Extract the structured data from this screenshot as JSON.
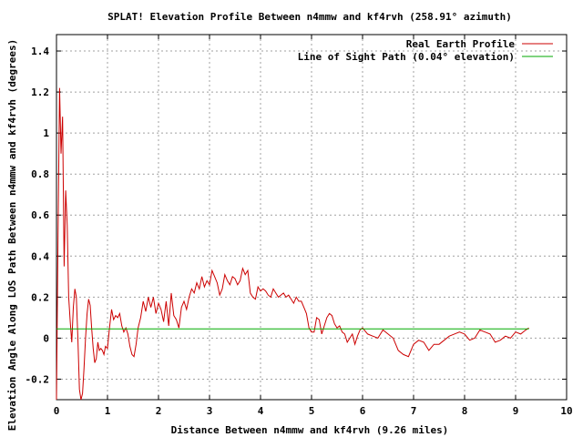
{
  "chart_data": {
    "type": "line",
    "title": "SPLAT! Elevation Profile Between n4mmw and kf4rvh (258.91° azimuth)",
    "xlabel": "Distance Between n4mmw and kf4rvh (9.26 miles)",
    "ylabel": "Elevation Angle Along LOS Path Between n4mmw and kf4rvh (degrees)",
    "xlim": [
      0,
      10
    ],
    "ylim": [
      -0.3,
      1.48
    ],
    "x_ticks": [
      0,
      1,
      2,
      3,
      4,
      5,
      6,
      7,
      8,
      9,
      10
    ],
    "y_ticks": [
      -0.2,
      0,
      0.2,
      0.4,
      0.6,
      0.8,
      1,
      1.2,
      1.4
    ],
    "x_tick_labels": [
      "0",
      "1",
      "2",
      "3",
      "4",
      "5",
      "6",
      "7",
      "8",
      "9",
      "10"
    ],
    "y_tick_labels": [
      "-0.2",
      "0",
      "0.2",
      "0.4",
      "0.6",
      "0.8",
      "1",
      "1.2",
      "1.4"
    ],
    "grid": true,
    "legend_position": "top-right",
    "series": [
      {
        "name": "Real Earth Profile",
        "color": "#cc0000",
        "x": [
          0.0,
          0.03,
          0.06,
          0.09,
          0.12,
          0.15,
          0.18,
          0.21,
          0.24,
          0.27,
          0.3,
          0.33,
          0.36,
          0.39,
          0.42,
          0.45,
          0.48,
          0.51,
          0.54,
          0.57,
          0.6,
          0.63,
          0.66,
          0.69,
          0.72,
          0.75,
          0.78,
          0.81,
          0.84,
          0.87,
          0.9,
          0.93,
          0.96,
          1.0,
          1.04,
          1.08,
          1.12,
          1.16,
          1.2,
          1.24,
          1.28,
          1.32,
          1.36,
          1.4,
          1.44,
          1.48,
          1.52,
          1.56,
          1.6,
          1.65,
          1.7,
          1.75,
          1.8,
          1.85,
          1.9,
          1.95,
          2.0,
          2.05,
          2.1,
          2.15,
          2.2,
          2.25,
          2.3,
          2.35,
          2.4,
          2.45,
          2.5,
          2.55,
          2.6,
          2.65,
          2.7,
          2.75,
          2.8,
          2.85,
          2.9,
          2.95,
          3.0,
          3.05,
          3.1,
          3.15,
          3.2,
          3.25,
          3.3,
          3.35,
          3.4,
          3.45,
          3.5,
          3.55,
          3.6,
          3.65,
          3.7,
          3.75,
          3.8,
          3.85,
          3.9,
          3.95,
          4.0,
          4.05,
          4.1,
          4.15,
          4.2,
          4.25,
          4.3,
          4.35,
          4.4,
          4.45,
          4.5,
          4.55,
          4.6,
          4.65,
          4.7,
          4.75,
          4.8,
          4.85,
          4.9,
          4.95,
          5.0,
          5.05,
          5.1,
          5.15,
          5.2,
          5.25,
          5.3,
          5.35,
          5.4,
          5.45,
          5.5,
          5.55,
          5.6,
          5.65,
          5.7,
          5.75,
          5.8,
          5.85,
          5.9,
          5.95,
          6.0,
          6.1,
          6.2,
          6.3,
          6.4,
          6.5,
          6.6,
          6.7,
          6.8,
          6.9,
          7.0,
          7.1,
          7.2,
          7.3,
          7.4,
          7.5,
          7.6,
          7.7,
          7.8,
          7.9,
          8.0,
          8.1,
          8.2,
          8.3,
          8.4,
          8.5,
          8.6,
          8.7,
          8.8,
          8.9,
          9.0,
          9.1,
          9.2,
          9.26
        ],
        "y": [
          -0.3,
          0.5,
          1.22,
          0.9,
          1.08,
          0.35,
          0.72,
          0.55,
          0.2,
          0.08,
          -0.02,
          0.15,
          0.24,
          0.2,
          0.0,
          -0.25,
          -0.3,
          -0.27,
          -0.15,
          0.0,
          0.12,
          0.19,
          0.16,
          0.05,
          -0.05,
          -0.12,
          -0.1,
          -0.02,
          -0.06,
          -0.05,
          -0.06,
          -0.08,
          -0.04,
          -0.05,
          0.05,
          0.14,
          0.09,
          0.11,
          0.1,
          0.12,
          0.06,
          0.03,
          0.05,
          0.02,
          -0.04,
          -0.08,
          -0.09,
          -0.03,
          0.05,
          0.1,
          0.18,
          0.13,
          0.2,
          0.15,
          0.2,
          0.12,
          0.17,
          0.14,
          0.08,
          0.18,
          0.06,
          0.22,
          0.11,
          0.09,
          0.05,
          0.15,
          0.18,
          0.14,
          0.2,
          0.24,
          0.22,
          0.27,
          0.24,
          0.3,
          0.25,
          0.28,
          0.26,
          0.33,
          0.3,
          0.27,
          0.21,
          0.24,
          0.31,
          0.28,
          0.26,
          0.3,
          0.29,
          0.26,
          0.28,
          0.34,
          0.31,
          0.33,
          0.22,
          0.2,
          0.19,
          0.25,
          0.23,
          0.24,
          0.23,
          0.21,
          0.2,
          0.24,
          0.22,
          0.2,
          0.21,
          0.22,
          0.2,
          0.21,
          0.19,
          0.17,
          0.2,
          0.18,
          0.18,
          0.15,
          0.12,
          0.05,
          0.03,
          0.03,
          0.1,
          0.09,
          0.02,
          0.06,
          0.1,
          0.12,
          0.11,
          0.07,
          0.05,
          0.06,
          0.03,
          0.02,
          -0.02,
          0.0,
          0.02,
          -0.03,
          0.01,
          0.04,
          0.05,
          0.02,
          0.01,
          0.0,
          0.04,
          0.02,
          0.0,
          -0.06,
          -0.08,
          -0.09,
          -0.03,
          -0.01,
          -0.02,
          -0.06,
          -0.03,
          -0.03,
          -0.01,
          0.01,
          0.02,
          0.03,
          0.02,
          -0.01,
          0.0,
          0.04,
          0.03,
          0.02,
          -0.02,
          -0.01,
          0.01,
          0.0,
          0.03,
          0.02,
          0.04,
          0.05
        ]
      },
      {
        "name": "Line of Sight Path (0.04° elevation)",
        "color": "#00aa00",
        "x": [
          0,
          9.26
        ],
        "y": [
          0.045,
          0.045
        ]
      }
    ]
  }
}
